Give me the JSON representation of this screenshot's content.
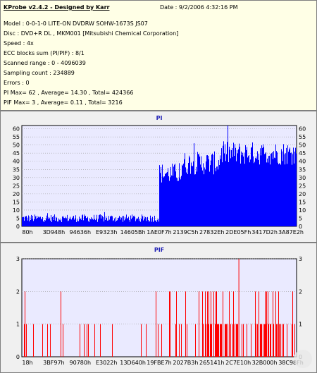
{
  "info": {
    "title": "KProbe v2.4.2 - Designed by Karr",
    "date": "Date : 9/2/2006 4:32:16 PM",
    "lines": [
      "Model : 0-0-1-0 LITE-ON DVDRW SOHW-1673S JS07",
      "Disc : DVD+R DL , MKM001 [Mitsubishi Chemical Corporation]",
      "Speed : 4x",
      "ECC blocks sum (PI/PIF) : 8/1",
      "Scanned range : 0 - 4096039",
      "Sampling count : 234889",
      "Errors : 0",
      "PI Max= 62 , Average= 14.30 , Total= 424366",
      "PIF Max= 3 , Average= 0.11 , Total= 3216"
    ]
  },
  "colors": {
    "pi_series": "#0000ff",
    "pif_series": "#ff0000",
    "plot_bg": "#eaeaff",
    "grid": "#9a9a9a"
  },
  "chart_data": [
    {
      "type": "bar",
      "title": "PI",
      "ylim": [
        0,
        62
      ],
      "yticks": [
        0,
        5,
        10,
        15,
        20,
        25,
        30,
        35,
        40,
        45,
        50,
        55,
        60
      ],
      "xtick_labels": [
        "80h",
        "3D948h",
        "94636h",
        "E9323h",
        "14605Bh",
        "1AE0F7h",
        "2139C5h",
        "27832Eh",
        "2DE05Fh",
        "3417D2h",
        "3A87E2h"
      ],
      "x_range_hex": [
        "80h",
        "3E8027h"
      ],
      "segments": [
        {
          "from": 0.0,
          "to": 0.5,
          "base": 4,
          "range": 3
        },
        {
          "from": 0.5,
          "to": 0.58,
          "base": 30,
          "range": 8
        },
        {
          "from": 0.58,
          "to": 0.72,
          "base": 36,
          "range": 9
        },
        {
          "from": 0.72,
          "to": 1.0,
          "base": 42,
          "range": 9
        }
      ],
      "max": 62,
      "grid": true
    },
    {
      "type": "bar",
      "title": "PIF",
      "ylim": [
        0,
        3
      ],
      "yticks": [
        0,
        1,
        2,
        3
      ],
      "xtick_labels": [
        "18h",
        "3BF97h",
        "90780h",
        "E3022h",
        "13D640h",
        "19FBE7h",
        "2027B3h",
        "265141h",
        "2C7E10h",
        "32B000h",
        "38C98Fh"
      ],
      "x_range_hex": [
        "18h",
        "3E8027h"
      ],
      "max": 3,
      "grid": true
    }
  ]
}
